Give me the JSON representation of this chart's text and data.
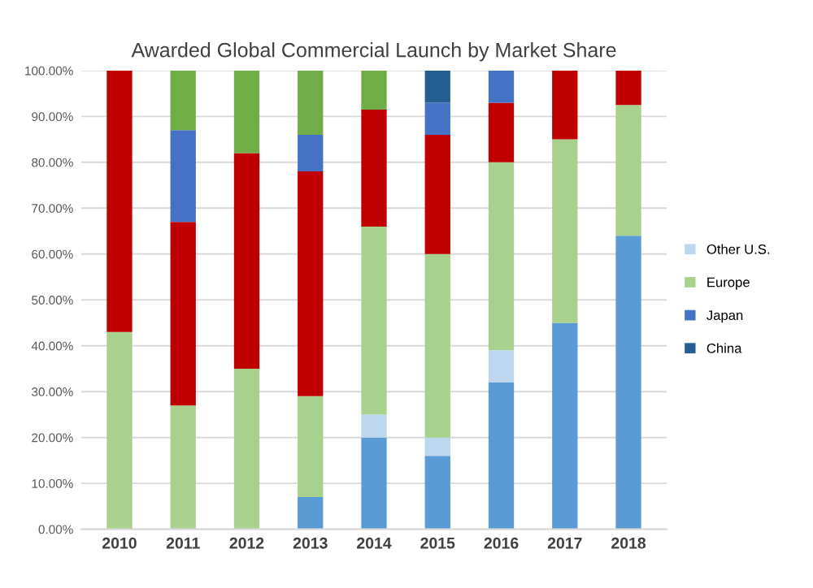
{
  "chart_data": {
    "type": "bar",
    "title": "Awarded Global Commercial Launch by Market Share",
    "stacked": true,
    "categories": [
      "2010",
      "2011",
      "2012",
      "2013",
      "2014",
      "2015",
      "2016",
      "2017",
      "2018"
    ],
    "series": [
      {
        "color": "#5b9bd5",
        "values": [
          0,
          0,
          0,
          7,
          20,
          16,
          32,
          45,
          64
        ]
      },
      {
        "name": "Other U.S.",
        "color": "#bdd7ee",
        "values": [
          0,
          0,
          0,
          0,
          5,
          4,
          7,
          0,
          0
        ]
      },
      {
        "name": "Europe",
        "color": "#a9d18e",
        "values": [
          43,
          27,
          35,
          22,
          41,
          40,
          41,
          40,
          28.5
        ]
      },
      {
        "color": "#c00000",
        "values": [
          57,
          40,
          47,
          49,
          25.5,
          26,
          13,
          15,
          7.5
        ]
      },
      {
        "name": "Japan",
        "color": "#4472c4",
        "values": [
          0,
          20,
          0,
          8,
          0,
          7,
          7,
          0,
          0
        ]
      },
      {
        "color": "#70ad47",
        "values": [
          0,
          13,
          18,
          14,
          8.5,
          0,
          0,
          0,
          0
        ]
      },
      {
        "name": "China",
        "color": "#255e91",
        "values": [
          0,
          0,
          0,
          0,
          0,
          7,
          0,
          0,
          0
        ]
      }
    ],
    "ylim": [
      0,
      100
    ],
    "yticks": [
      {
        "value": 0,
        "label": "0.00%"
      },
      {
        "value": 10,
        "label": "10.00%"
      },
      {
        "value": 20,
        "label": "20.00%"
      },
      {
        "value": 30,
        "label": "30.00%"
      },
      {
        "value": 40,
        "label": "40.00%"
      },
      {
        "value": 50,
        "label": "50.00%"
      },
      {
        "value": 60,
        "label": "60.00%"
      },
      {
        "value": 70,
        "label": "70.00%"
      },
      {
        "value": 80,
        "label": "80.00%"
      },
      {
        "value": 90,
        "label": "90.00%"
      },
      {
        "value": 100,
        "label": "100.00%"
      }
    ],
    "grid": "y",
    "legend": "right"
  }
}
